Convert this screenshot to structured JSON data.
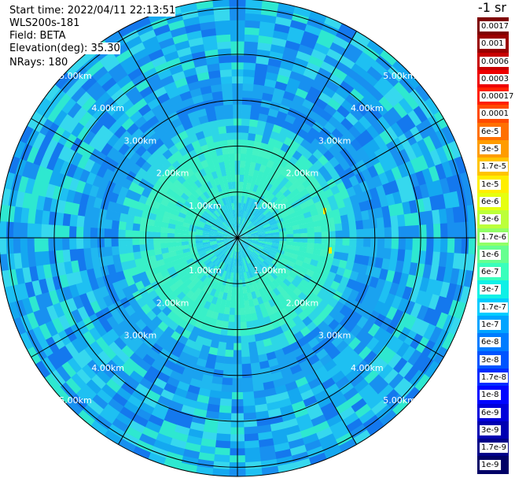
{
  "header": {
    "start_time": "Start time: 2022/04/11 22:13:51",
    "instrument": "WLS200s-181",
    "field": "Field: BETA",
    "elevation": "Elevation(deg): 35.30",
    "nrays": "NRays: 180"
  },
  "colorbar": {
    "title": "-1 sr",
    "levels": [
      {
        "label": "0.0017",
        "color": "#7f0000"
      },
      {
        "label": "0.001",
        "color": "#9a0000"
      },
      {
        "label": "0.0006",
        "color": "#c80000"
      },
      {
        "label": "0.0003",
        "color": "#ee0000"
      },
      {
        "label": "0.00017",
        "color": "#ff2000"
      },
      {
        "label": "0.0001",
        "color": "#ff4a00"
      },
      {
        "label": "6e-5",
        "color": "#ff7000"
      },
      {
        "label": "3e-5",
        "color": "#ff9c00"
      },
      {
        "label": "1.7e-5",
        "color": "#ffc400"
      },
      {
        "label": "1e-5",
        "color": "#ffee00"
      },
      {
        "label": "6e-6",
        "color": "#e6ff10"
      },
      {
        "label": "3e-6",
        "color": "#bcff3a"
      },
      {
        "label": "1.7e-6",
        "color": "#90ff66"
      },
      {
        "label": "1e-6",
        "color": "#66ff90"
      },
      {
        "label": "6e-7",
        "color": "#3affbc"
      },
      {
        "label": "3e-7",
        "color": "#10f0e6"
      },
      {
        "label": "1.7e-7",
        "color": "#00ccff"
      },
      {
        "label": "1e-7",
        "color": "#00a4ff"
      },
      {
        "label": "6e-8",
        "color": "#007cff"
      },
      {
        "label": "3e-8",
        "color": "#0054ff"
      },
      {
        "label": "1.7e-8",
        "color": "#002cff"
      },
      {
        "label": "1e-8",
        "color": "#0004ff"
      },
      {
        "label": "6e-9",
        "color": "#0000da"
      },
      {
        "label": "3e-9",
        "color": "#0000b2"
      },
      {
        "label": "1.7e-9",
        "color": "#00008a"
      },
      {
        "label": "1e-9",
        "color": "#000066"
      }
    ]
  },
  "range_rings": [
    {
      "label": "1.00km",
      "km": 1.0
    },
    {
      "label": "2.00km",
      "km": 2.0
    },
    {
      "label": "3.00km",
      "km": 3.0
    },
    {
      "label": "4.00km",
      "km": 4.0
    },
    {
      "label": "5.00km",
      "km": 5.0
    }
  ],
  "azimuth_lines_deg": [
    0,
    30,
    60,
    90,
    120,
    150
  ],
  "max_range_km": 5.2,
  "scan_colors": {
    "inner": "#38f0c8",
    "mid": "#2dd6e6",
    "outer": "#1aa2f0",
    "deep": "#1480f0",
    "hot": "#ffee00"
  }
}
